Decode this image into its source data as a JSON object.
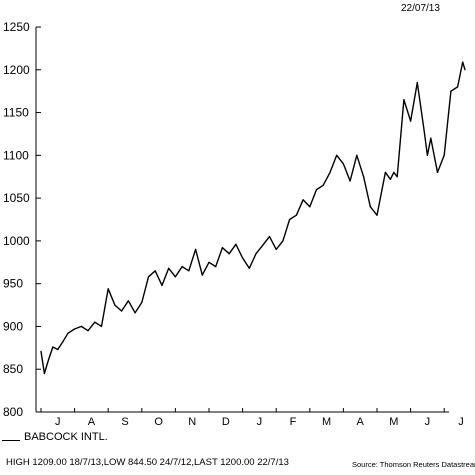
{
  "header": {
    "date": "22/07/13"
  },
  "legend": {
    "label": "BABCOCK INTL."
  },
  "footer": {
    "stats": "HIGH 1209.00 18/7/13,LOW 844.50 24/7/12,LAST 1200.00 22/7/13",
    "source": "Source: Thomson Reuters Datastream"
  },
  "chart_data": {
    "type": "line",
    "title": "",
    "xlabel": "",
    "ylabel": "",
    "ylim": [
      800,
      1250
    ],
    "yticks": [
      800,
      850,
      900,
      950,
      1000,
      1050,
      1100,
      1150,
      1200,
      1250
    ],
    "xticks": [
      "J",
      "A",
      "S",
      "O",
      "N",
      "D",
      "J",
      "F",
      "M",
      "A",
      "M",
      "J",
      "J"
    ],
    "grid": false,
    "legend_position": "bottom-left",
    "line_color": "#000000",
    "series": [
      {
        "name": "BABCOCK INTL.",
        "x_index": [
          0,
          0.1,
          0.2,
          0.35,
          0.5,
          0.65,
          0.8,
          1.0,
          1.2,
          1.4,
          1.6,
          1.8,
          2.0,
          2.2,
          2.4,
          2.6,
          2.8,
          3.0,
          3.2,
          3.4,
          3.6,
          3.8,
          4.0,
          4.2,
          4.4,
          4.6,
          4.8,
          5.0,
          5.2,
          5.4,
          5.6,
          5.8,
          6.0,
          6.2,
          6.4,
          6.6,
          6.8,
          7.0,
          7.2,
          7.4,
          7.6,
          7.8,
          8.0,
          8.2,
          8.4,
          8.6,
          8.8,
          9.0,
          9.2,
          9.4,
          9.6,
          9.8,
          10.0,
          10.15,
          10.25,
          10.4,
          10.5,
          10.6,
          10.8,
          11.0,
          11.2,
          11.4,
          11.5,
          11.6,
          11.8,
          12.0,
          12.2,
          12.4,
          12.55,
          12.62
        ],
        "values": [
          871,
          845,
          858,
          876,
          873,
          882,
          892,
          897,
          900,
          895,
          905,
          900,
          944,
          925,
          918,
          930,
          916,
          928,
          958,
          965,
          948,
          968,
          958,
          970,
          965,
          990,
          960,
          975,
          970,
          992,
          985,
          996,
          980,
          968,
          985,
          995,
          1005,
          990,
          1000,
          1025,
          1030,
          1048,
          1040,
          1060,
          1065,
          1080,
          1100,
          1090,
          1070,
          1100,
          1075,
          1040,
          1030,
          1060,
          1080,
          1072,
          1080,
          1075,
          1165,
          1140,
          1185,
          1130,
          1100,
          1120,
          1080,
          1100,
          1175,
          1180,
          1209,
          1200
        ]
      }
    ]
  }
}
